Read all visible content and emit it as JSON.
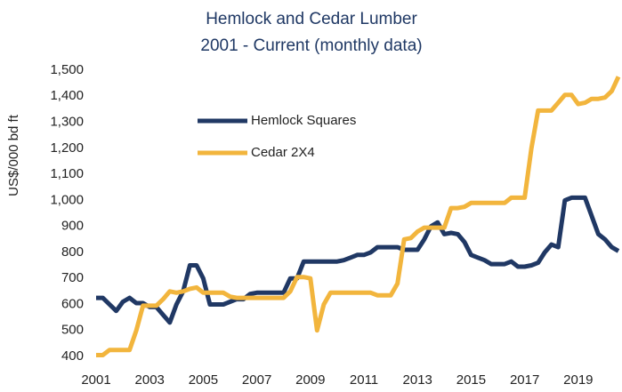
{
  "chart_data": {
    "type": "line",
    "title": [
      "Hemlock and Cedar Lumber",
      "2001 - Current (monthly data)"
    ],
    "y_label": "US$/000 bd ft",
    "x": [
      2001,
      2001.25,
      2001.5,
      2001.75,
      2002,
      2002.25,
      2002.5,
      2002.75,
      2003,
      2003.25,
      2003.5,
      2003.75,
      2004,
      2004.25,
      2004.5,
      2004.75,
      2005,
      2005.25,
      2005.5,
      2005.75,
      2006,
      2006.25,
      2006.5,
      2006.75,
      2007,
      2007.25,
      2007.5,
      2007.75,
      2008,
      2008.25,
      2008.5,
      2008.75,
      2009,
      2009.25,
      2009.5,
      2009.75,
      2010,
      2010.25,
      2010.5,
      2010.75,
      2011,
      2011.25,
      2011.5,
      2011.75,
      2012,
      2012.25,
      2012.5,
      2012.75,
      2013,
      2013.25,
      2013.5,
      2013.75,
      2014,
      2014.25,
      2014.5,
      2014.75,
      2015,
      2015.25,
      2015.5,
      2015.75,
      2016,
      2016.25,
      2016.5,
      2016.75,
      2017,
      2017.25,
      2017.5,
      2017.75,
      2018,
      2018.25,
      2018.5,
      2018.75,
      2019,
      2019.25,
      2019.5,
      2019.75,
      2020,
      2020.25,
      2020.5
    ],
    "series": [
      {
        "name": "Hemlock Squares",
        "color": "#203864",
        "values": [
          625,
          625,
          600,
          575,
          610,
          625,
          605,
          605,
          590,
          590,
          560,
          530,
          600,
          650,
          750,
          750,
          700,
          600,
          600,
          600,
          610,
          620,
          620,
          640,
          645,
          645,
          645,
          645,
          645,
          700,
          700,
          765,
          765,
          765,
          765,
          765,
          765,
          770,
          780,
          790,
          790,
          800,
          820,
          820,
          820,
          820,
          810,
          810,
          810,
          850,
          900,
          915,
          870,
          875,
          870,
          840,
          790,
          780,
          770,
          755,
          755,
          755,
          765,
          745,
          745,
          750,
          760,
          800,
          830,
          820,
          1000,
          1010,
          1010,
          1010,
          940,
          870,
          850,
          820,
          805
        ]
      },
      {
        "name": "Cedar 2X4",
        "color": "#f2b53d",
        "values": [
          405,
          405,
          425,
          425,
          425,
          425,
          500,
          595,
          595,
          595,
          620,
          650,
          645,
          650,
          660,
          665,
          645,
          645,
          645,
          645,
          630,
          625,
          625,
          625,
          625,
          625,
          625,
          625,
          625,
          650,
          705,
          705,
          700,
          500,
          600,
          645,
          645,
          645,
          645,
          645,
          645,
          645,
          635,
          635,
          635,
          680,
          850,
          855,
          880,
          895,
          895,
          895,
          895,
          970,
          970,
          975,
          990,
          990,
          990,
          990,
          990,
          990,
          1010,
          1010,
          1010,
          1200,
          1345,
          1345,
          1345,
          1375,
          1405,
          1405,
          1370,
          1375,
          1390,
          1390,
          1395,
          1420,
          1475
        ]
      }
    ],
    "xlim": [
      2001,
      2020.5
    ],
    "xticks": [
      2001,
      2003,
      2005,
      2007,
      2009,
      2011,
      2013,
      2015,
      2017,
      2019
    ],
    "ylim": [
      400,
      1500
    ],
    "yticks": [
      400,
      500,
      600,
      700,
      800,
      900,
      {
        "value": 1000,
        "label": "1,000"
      },
      {
        "value": 1100,
        "label": "1,100"
      },
      {
        "value": 1200,
        "label": "1,200"
      },
      {
        "value": 1300,
        "label": "1,300"
      },
      {
        "value": 1400,
        "label": "1,400"
      },
      {
        "value": 1500,
        "label": "1,500"
      }
    ],
    "grid": false,
    "legend": "upper left"
  }
}
